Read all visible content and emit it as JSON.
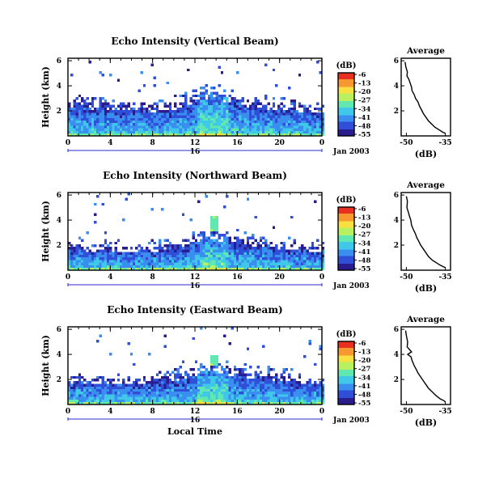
{
  "chart_data": [
    {
      "type": "heatmap",
      "title": "Echo Intensity (Vertical Beam)",
      "ylabel": "Height (km)",
      "xlabel": "",
      "x_ticks": [
        "0",
        "4",
        "8",
        "12",
        "16",
        "20",
        "0"
      ],
      "y_ticks": [
        "6",
        "4",
        "2"
      ],
      "xlim": [
        0,
        24
      ],
      "ylim": [
        0,
        6.2
      ],
      "day_label": "16",
      "date_label": "Jan 2003",
      "colorbar": {
        "title": "(dB)",
        "ticks": [
          "-6",
          "-13",
          "-20",
          "-27",
          "-34",
          "-41",
          "-48",
          "-55"
        ]
      },
      "surface": [
        [
          0,
          2.9
        ],
        [
          1,
          3.0
        ],
        [
          2,
          2.8
        ],
        [
          3,
          2.9
        ],
        [
          4,
          2.7
        ],
        [
          5,
          2.6
        ],
        [
          6,
          2.8
        ],
        [
          7,
          2.7
        ],
        [
          8,
          2.5
        ],
        [
          9,
          2.6
        ],
        [
          10,
          2.8
        ],
        [
          11,
          3.2
        ],
        [
          12,
          3.5
        ],
        [
          13,
          3.8
        ],
        [
          13.5,
          4.0
        ],
        [
          14,
          3.7
        ],
        [
          15,
          3.5
        ],
        [
          16,
          3.3
        ],
        [
          17,
          3.0
        ],
        [
          18,
          2.9
        ],
        [
          19,
          2.8
        ],
        [
          20,
          2.7
        ],
        [
          21,
          2.6
        ],
        [
          22,
          2.5
        ],
        [
          23,
          2.4
        ],
        [
          24,
          2.3
        ]
      ],
      "spike": {
        "time": 13.6,
        "height": 3.6
      },
      "avg_profile": {
        "title": "Average",
        "xlabel": "(dB)",
        "x_ticks": [
          "-50",
          "-35"
        ],
        "y_ticks": [
          "6",
          "4",
          "2"
        ],
        "xlim": [
          -52,
          -33
        ],
        "ylim": [
          0,
          6.2
        ],
        "points": [
          [
            -50.5,
            5.9
          ],
          [
            -50.2,
            5.5
          ],
          [
            -49.6,
            5.1
          ],
          [
            -49.8,
            4.8
          ],
          [
            -49.0,
            4.5
          ],
          [
            -48.5,
            4.2
          ],
          [
            -48.0,
            3.9
          ],
          [
            -47.8,
            3.6
          ],
          [
            -47.0,
            3.3
          ],
          [
            -46.5,
            3.0
          ],
          [
            -45.5,
            2.7
          ],
          [
            -45.0,
            2.4
          ],
          [
            -44.2,
            2.1
          ],
          [
            -43.5,
            1.8
          ],
          [
            -42.5,
            1.5
          ],
          [
            -41.5,
            1.2
          ],
          [
            -40.0,
            0.9
          ],
          [
            -39.0,
            0.7
          ],
          [
            -37.5,
            0.5
          ],
          [
            -36.0,
            0.3
          ],
          [
            -35.0,
            0.2
          ]
        ]
      }
    },
    {
      "type": "heatmap",
      "title": "Echo Intensity (Northward Beam)",
      "ylabel": "Height (km)",
      "xlabel": "",
      "x_ticks": [
        "0",
        "4",
        "8",
        "12",
        "16",
        "20",
        "0"
      ],
      "y_ticks": [
        "6",
        "4",
        "2"
      ],
      "xlim": [
        0,
        24
      ],
      "ylim": [
        0,
        6.2
      ],
      "day_label": "16",
      "date_label": "Jan 2003",
      "colorbar": {
        "title": "(dB)",
        "ticks": [
          "-6",
          "-13",
          "-20",
          "-27",
          "-34",
          "-41",
          "-48",
          "-55"
        ]
      },
      "surface": [
        [
          0,
          2.1
        ],
        [
          1,
          2.2
        ],
        [
          2,
          2.0
        ],
        [
          3,
          2.1
        ],
        [
          4,
          2.0
        ],
        [
          5,
          1.9
        ],
        [
          6,
          2.0
        ],
        [
          7,
          2.1
        ],
        [
          8,
          2.0
        ],
        [
          9,
          2.1
        ],
        [
          10,
          2.3
        ],
        [
          11,
          2.6
        ],
        [
          12,
          3.0
        ],
        [
          13,
          3.2
        ],
        [
          14,
          3.1
        ],
        [
          15,
          3.0
        ],
        [
          16,
          2.8
        ],
        [
          17,
          2.6
        ],
        [
          18,
          2.5
        ],
        [
          19,
          2.4
        ],
        [
          20,
          2.3
        ],
        [
          21,
          2.2
        ],
        [
          22,
          2.1
        ],
        [
          23,
          2.0
        ],
        [
          24,
          2.0
        ]
      ],
      "spike": {
        "time": 13.7,
        "height": 4.4
      },
      "avg_profile": {
        "title": "Average",
        "xlabel": "(dB)",
        "x_ticks": [
          "-50",
          "-35"
        ],
        "y_ticks": [
          "6",
          "4",
          "2"
        ],
        "xlim": [
          -52,
          -33
        ],
        "ylim": [
          0,
          6.2
        ],
        "points": [
          [
            -50.0,
            5.9
          ],
          [
            -49.6,
            5.5
          ],
          [
            -49.8,
            5.0
          ],
          [
            -49.2,
            4.6
          ],
          [
            -48.8,
            4.3
          ],
          [
            -48.3,
            4.0
          ],
          [
            -48.0,
            3.6
          ],
          [
            -47.2,
            3.2
          ],
          [
            -46.5,
            2.9
          ],
          [
            -46.0,
            2.6
          ],
          [
            -45.2,
            2.3
          ],
          [
            -44.5,
            2.0
          ],
          [
            -43.5,
            1.7
          ],
          [
            -42.5,
            1.4
          ],
          [
            -41.5,
            1.1
          ],
          [
            -40.0,
            0.8
          ],
          [
            -38.5,
            0.6
          ],
          [
            -37.0,
            0.4
          ],
          [
            -35.5,
            0.25
          ],
          [
            -35.0,
            0.2
          ]
        ]
      }
    },
    {
      "type": "heatmap",
      "title": "Echo Intensity (Eastward Beam)",
      "ylabel": "Height (km)",
      "xlabel": "Local Time",
      "x_ticks": [
        "0",
        "4",
        "8",
        "12",
        "16",
        "20",
        "0"
      ],
      "y_ticks": [
        "6",
        "4",
        "2"
      ],
      "xlim": [
        0,
        24
      ],
      "ylim": [
        0,
        6.2
      ],
      "day_label": "16",
      "date_label": "Jan 2003",
      "colorbar": {
        "title": "(dB)",
        "ticks": [
          "-6",
          "-13",
          "-20",
          "-27",
          "-34",
          "-41",
          "-48",
          "-55"
        ]
      },
      "surface": [
        [
          0,
          2.3
        ],
        [
          1,
          2.4
        ],
        [
          2,
          2.2
        ],
        [
          3,
          2.3
        ],
        [
          4,
          2.2
        ],
        [
          5,
          2.1
        ],
        [
          6,
          2.2
        ],
        [
          7,
          2.3
        ],
        [
          8,
          2.2
        ],
        [
          9,
          2.3
        ],
        [
          10,
          2.5
        ],
        [
          11,
          2.8
        ],
        [
          12,
          3.1
        ],
        [
          13,
          3.3
        ],
        [
          14,
          3.2
        ],
        [
          15,
          3.1
        ],
        [
          16,
          3.0
        ],
        [
          17,
          2.8
        ],
        [
          18,
          2.7
        ],
        [
          19,
          2.6
        ],
        [
          20,
          2.5
        ],
        [
          21,
          2.4
        ],
        [
          22,
          2.3
        ],
        [
          23,
          2.2
        ],
        [
          24,
          2.2
        ]
      ],
      "spike": {
        "time": 13.6,
        "height": 4.0
      },
      "avg_profile": {
        "title": "Average",
        "xlabel": "(dB)",
        "x_ticks": [
          "-50",
          "-35"
        ],
        "y_ticks": [
          "6",
          "4",
          "2"
        ],
        "xlim": [
          -52,
          -33
        ],
        "ylim": [
          0,
          6.2
        ],
        "points": [
          [
            -50.3,
            5.9
          ],
          [
            -50.0,
            5.5
          ],
          [
            -49.5,
            5.0
          ],
          [
            -49.7,
            4.6
          ],
          [
            -48.0,
            4.2
          ],
          [
            -49.5,
            4.0
          ],
          [
            -48.2,
            3.8
          ],
          [
            -47.8,
            3.5
          ],
          [
            -47.0,
            3.1
          ],
          [
            -46.2,
            2.8
          ],
          [
            -45.5,
            2.5
          ],
          [
            -44.5,
            2.2
          ],
          [
            -43.5,
            1.9
          ],
          [
            -42.5,
            1.6
          ],
          [
            -41.5,
            1.3
          ],
          [
            -40.0,
            1.0
          ],
          [
            -38.5,
            0.7
          ],
          [
            -37.0,
            0.45
          ],
          [
            -35.5,
            0.3
          ],
          [
            -35.0,
            0.2
          ]
        ]
      }
    }
  ],
  "colors": {
    "colormap": [
      "#2a1c8c",
      "#2f4fd8",
      "#3a8ef0",
      "#40c8e8",
      "#60e8b0",
      "#b8f060",
      "#f8e040",
      "#f89830",
      "#e83020"
    ],
    "day_bar": "#2a2ad0"
  }
}
